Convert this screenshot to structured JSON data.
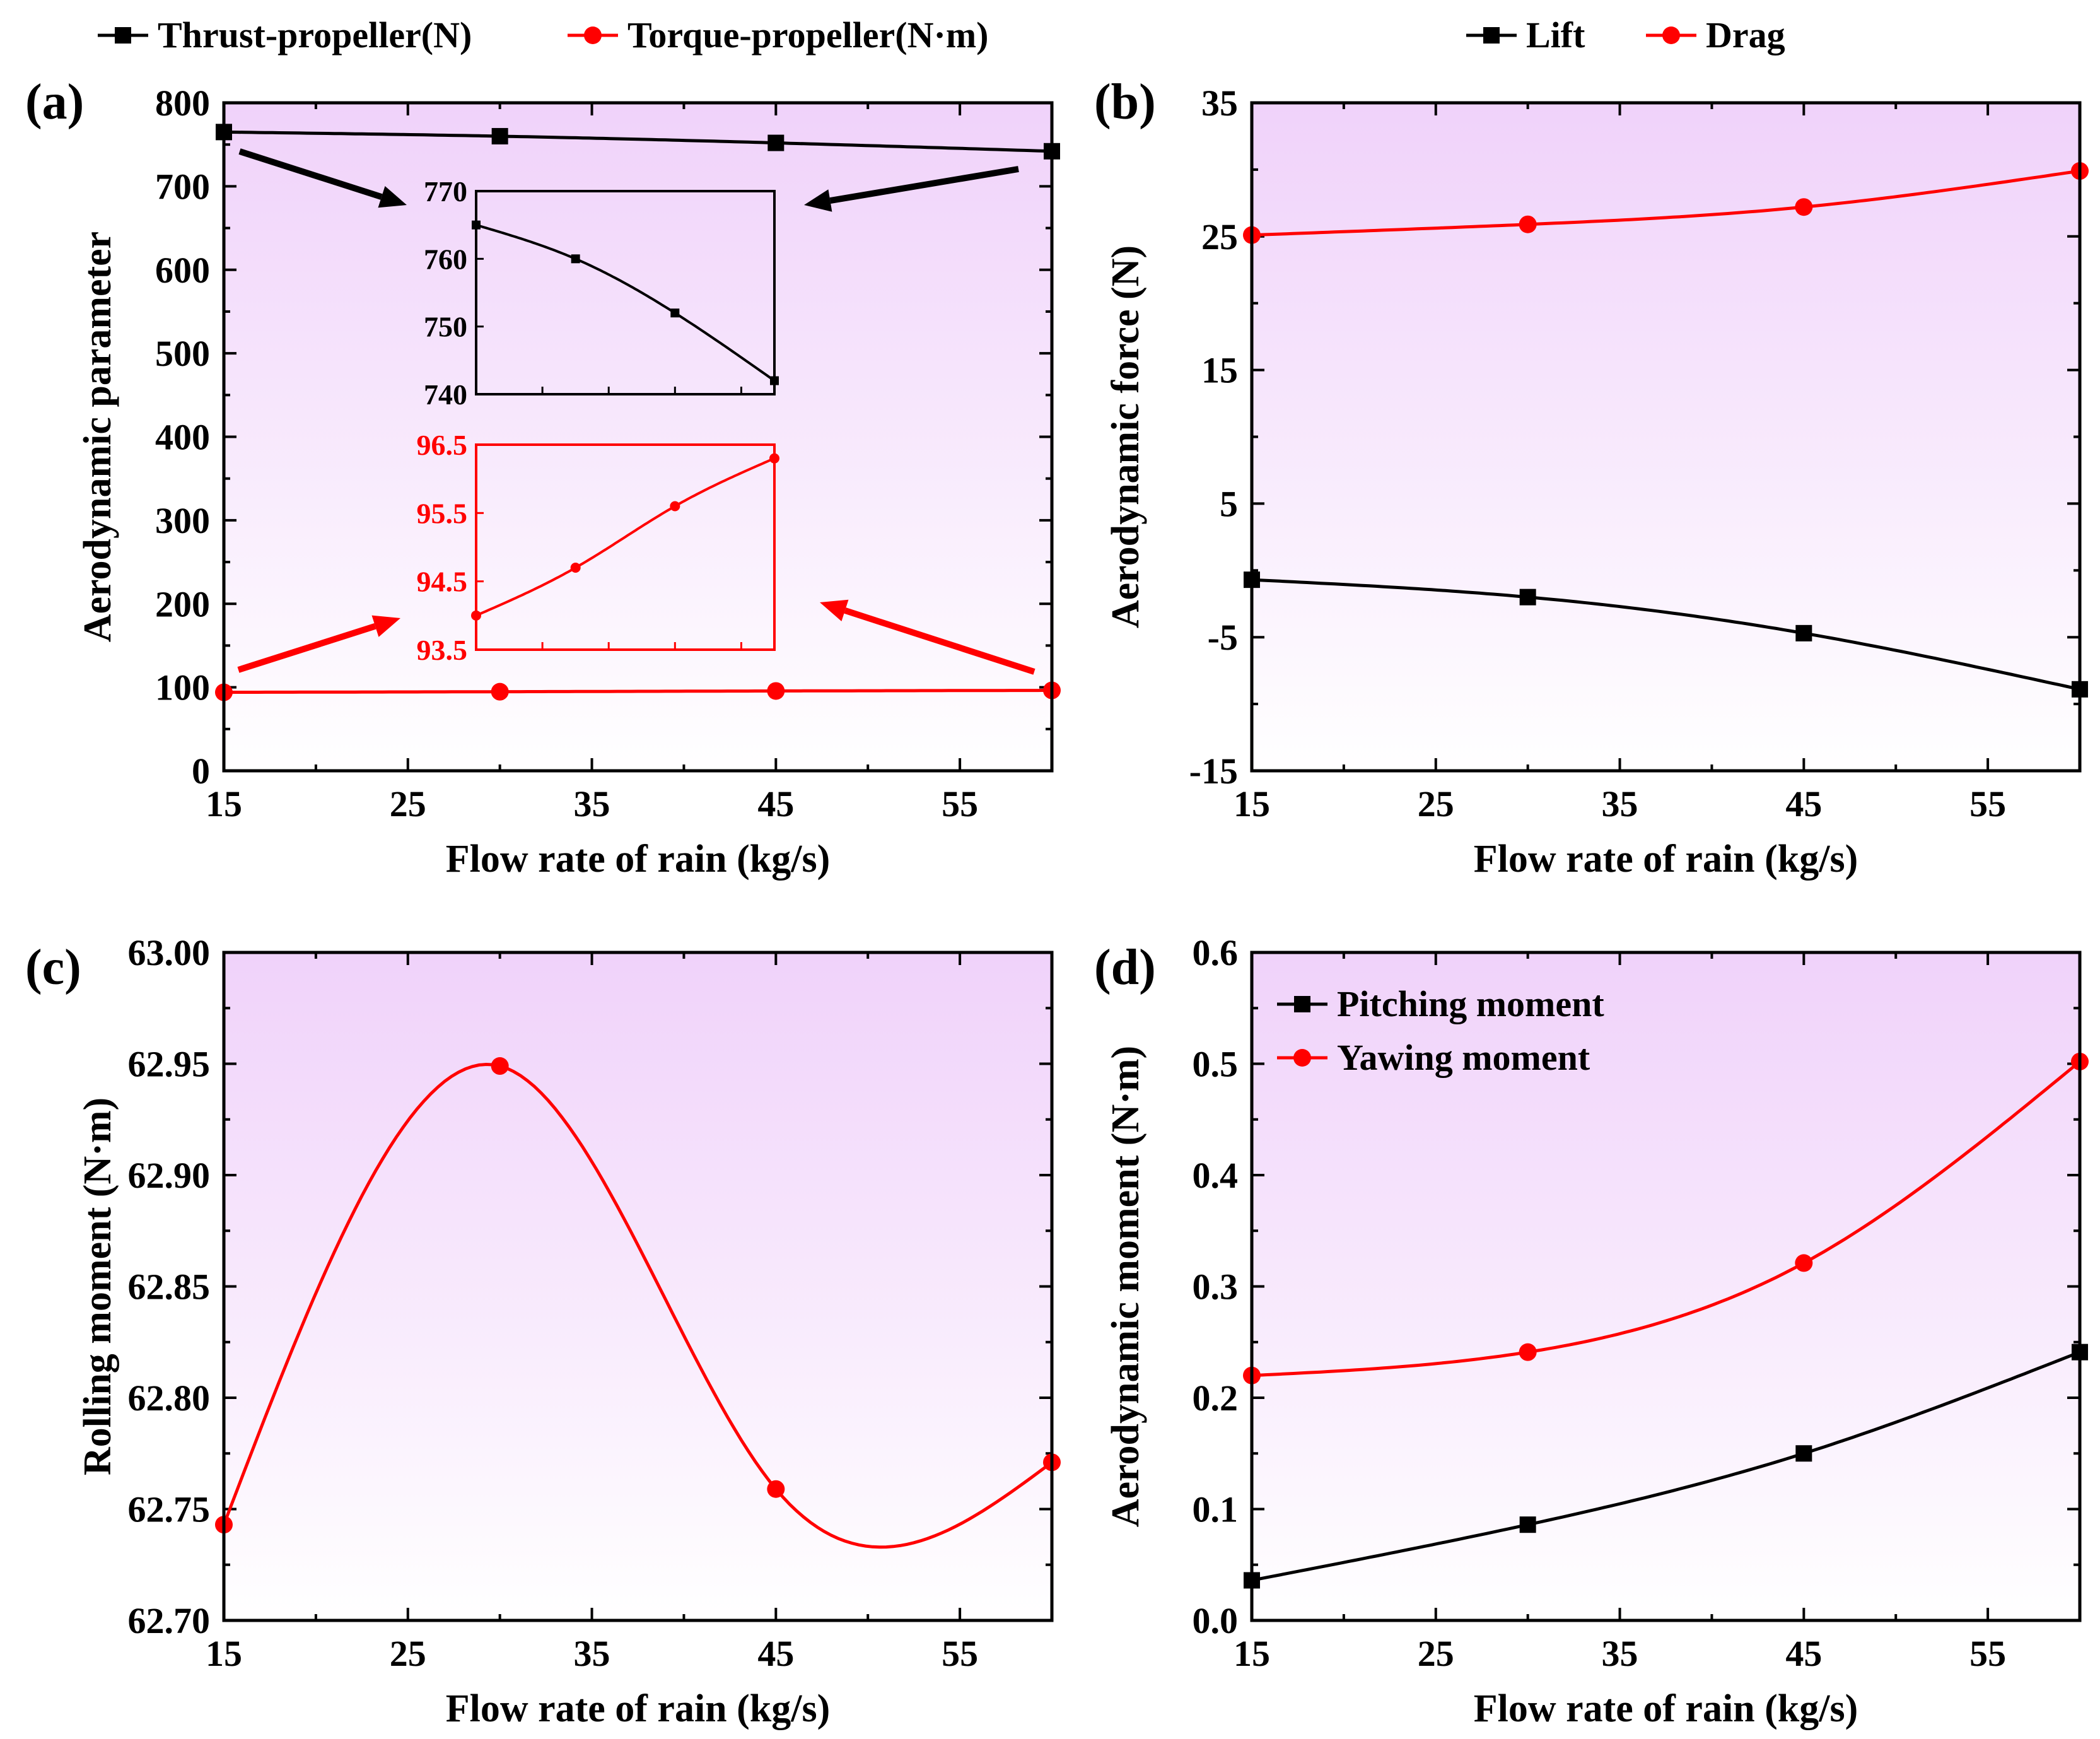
{
  "colors": {
    "black": "#000000",
    "red": "#ff0000",
    "bg_top": "#f0d2fa",
    "bg_bottom": "#ffffff"
  },
  "chart_data": [
    {
      "id": "a",
      "panel_label": "(a)",
      "type": "line",
      "xlabel": "Flow rate of rain (kg/s)",
      "ylabel": "Aerodynamic parameter",
      "xlim": [
        15,
        60
      ],
      "ylim": [
        0,
        800
      ],
      "xticks": [
        15,
        25,
        35,
        45,
        55
      ],
      "xtick_labels": [
        "15",
        "25",
        "35",
        "45",
        "55"
      ],
      "yticks": [
        0,
        100,
        200,
        300,
        400,
        500,
        600,
        700,
        800
      ],
      "ytick_labels": [
        "0",
        "100",
        "200",
        "300",
        "400",
        "500",
        "600",
        "700",
        "800"
      ],
      "legend_position": "top-outside",
      "series": [
        {
          "name": "Thrust-propeller(N)",
          "color": "#000000",
          "marker": "square",
          "x": [
            15,
            30,
            45,
            60
          ],
          "values": [
            765,
            760,
            752,
            742
          ]
        },
        {
          "name": "Torque-propeller(N·m)",
          "color": "#ff0000",
          "marker": "circle",
          "x": [
            15,
            30,
            45,
            60
          ],
          "values": [
            94.0,
            94.7,
            95.6,
            96.3
          ]
        }
      ],
      "insets": [
        {
          "name": "thrust-inset",
          "color": "#000000",
          "ylim": [
            740,
            770
          ],
          "yticks": [
            740,
            750,
            760,
            770
          ],
          "ytick_labels": [
            "740",
            "750",
            "760",
            "770"
          ],
          "x": [
            15,
            30,
            45,
            60
          ],
          "values": [
            765,
            760,
            752,
            742
          ]
        },
        {
          "name": "torque-inset",
          "color": "#ff0000",
          "ylim": [
            93.5,
            96.5
          ],
          "yticks": [
            93.5,
            94.5,
            95.5,
            96.5
          ],
          "ytick_labels": [
            "93.5",
            "94.5",
            "95.5",
            "96.5"
          ],
          "x": [
            15,
            30,
            45,
            60
          ],
          "values": [
            94.0,
            94.7,
            95.6,
            96.3
          ]
        }
      ]
    },
    {
      "id": "b",
      "panel_label": "(b)",
      "type": "line",
      "xlabel": "Flow rate of rain (kg/s)",
      "ylabel": "Aerodynamic force (N)",
      "xlim": [
        15,
        60
      ],
      "ylim": [
        -15,
        35
      ],
      "xticks": [
        15,
        25,
        35,
        45,
        55
      ],
      "xtick_labels": [
        "15",
        "25",
        "35",
        "45",
        "55"
      ],
      "yticks": [
        -15,
        -5,
        5,
        15,
        25,
        35
      ],
      "ytick_labels": [
        "-15",
        "-5",
        "5",
        "15",
        "25",
        "35"
      ],
      "legend_position": "top-outside",
      "series": [
        {
          "name": "Lift",
          "color": "#000000",
          "marker": "square",
          "x": [
            15,
            30,
            45,
            60
          ],
          "values": [
            -0.7,
            -2.0,
            -4.7,
            -8.9
          ]
        },
        {
          "name": "Drag",
          "color": "#ff0000",
          "marker": "circle",
          "x": [
            15,
            30,
            45,
            60
          ],
          "values": [
            25.1,
            25.9,
            27.2,
            29.9
          ]
        }
      ]
    },
    {
      "id": "c",
      "panel_label": "(c)",
      "type": "line",
      "xlabel": "Flow rate of rain (kg/s)",
      "ylabel": "Rolling moment (N·m)",
      "xlim": [
        15,
        60
      ],
      "ylim": [
        62.7,
        63.0
      ],
      "xticks": [
        15,
        25,
        35,
        45,
        55
      ],
      "xtick_labels": [
        "15",
        "25",
        "35",
        "45",
        "55"
      ],
      "yticks": [
        62.7,
        62.75,
        62.8,
        62.85,
        62.9,
        62.95,
        63.0
      ],
      "ytick_labels": [
        "62.70",
        "62.75",
        "62.80",
        "62.85",
        "62.90",
        "62.95",
        "63.00"
      ],
      "series": [
        {
          "name": "Rolling moment",
          "color": "#ff0000",
          "marker": "circle",
          "x": [
            15,
            30,
            45,
            60
          ],
          "values": [
            62.743,
            62.949,
            62.759,
            62.771
          ]
        }
      ]
    },
    {
      "id": "d",
      "panel_label": "(d)",
      "type": "line",
      "xlabel": "Flow rate of rain (kg/s)",
      "ylabel": "Aerodynamic moment (N·m)",
      "xlim": [
        15,
        60
      ],
      "ylim": [
        0.0,
        0.6
      ],
      "xticks": [
        15,
        25,
        35,
        45,
        55
      ],
      "xtick_labels": [
        "15",
        "25",
        "35",
        "45",
        "55"
      ],
      "yticks": [
        0.0,
        0.1,
        0.2,
        0.3,
        0.4,
        0.5,
        0.6
      ],
      "ytick_labels": [
        "0.0",
        "0.1",
        "0.2",
        "0.3",
        "0.4",
        "0.5",
        "0.6"
      ],
      "legend_position": "top-left",
      "series": [
        {
          "name": "Pitching moment",
          "color": "#000000",
          "marker": "square",
          "x": [
            15,
            30,
            45,
            60
          ],
          "values": [
            0.036,
            0.086,
            0.15,
            0.241
          ]
        },
        {
          "name": "Yawing moment",
          "color": "#ff0000",
          "marker": "circle",
          "x": [
            15,
            30,
            45,
            60
          ],
          "values": [
            0.22,
            0.241,
            0.321,
            0.502
          ]
        }
      ]
    }
  ]
}
